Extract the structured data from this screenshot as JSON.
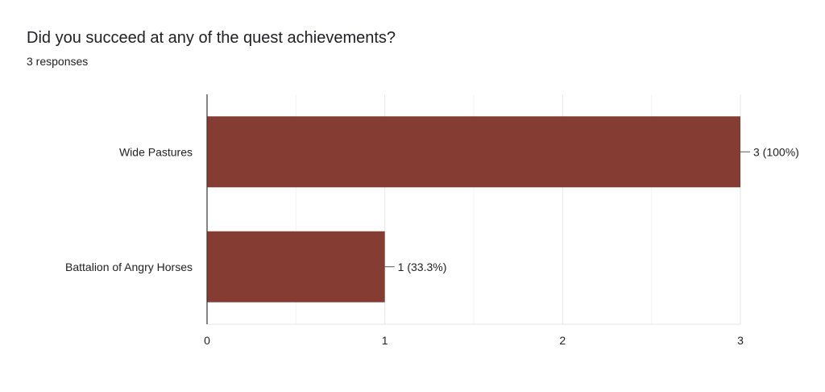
{
  "question": {
    "title": "Did you succeed at any of the quest achievements?",
    "responses": "3 responses"
  },
  "colors": {
    "bar": "#853d33",
    "grid": "#ebebeb",
    "axis": "#333333",
    "text": "#222222"
  },
  "chart_data": {
    "type": "bar",
    "orientation": "horizontal",
    "categories": [
      "Wide Pastures",
      "Battalion of Angry Horses"
    ],
    "values": [
      3,
      1
    ],
    "data_labels": [
      "3 (100%)",
      "1 (33.3%)"
    ],
    "xlim": [
      0,
      3
    ],
    "x_ticks": [
      0,
      1,
      2,
      3
    ],
    "grid": true,
    "legend": "none"
  }
}
